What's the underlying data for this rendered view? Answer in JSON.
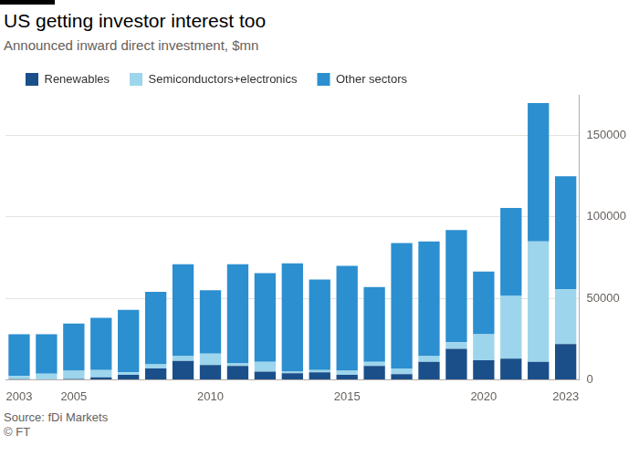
{
  "chart_data": {
    "type": "bar",
    "title": "US getting investor interest too",
    "subtitle": "Announced inward direct investment, $mn",
    "source": "Source: fDi Markets",
    "credit": "© FT",
    "stacked": true,
    "grid": true,
    "legend": "top-left",
    "categories": [
      "2003",
      null,
      "2005",
      null,
      null,
      null,
      null,
      "2010",
      null,
      null,
      null,
      null,
      "2015",
      null,
      null,
      null,
      null,
      "2020",
      null,
      null,
      "2023"
    ],
    "series": [
      {
        "name": "Renewables",
        "color": "#1b4f8a",
        "values": [
          300,
          200,
          500,
          1500,
          3000,
          7000,
          11500,
          9000,
          8500,
          5000,
          4000,
          4500,
          3000,
          8500,
          3500,
          11000,
          19000,
          12000,
          13000,
          11000,
          22000
        ]
      },
      {
        "name": "Semiconductors+electronics",
        "color": "#9dd5ec",
        "values": [
          2000,
          3500,
          5000,
          4500,
          1500,
          2500,
          3000,
          7000,
          1500,
          6000,
          1000,
          1500,
          2500,
          2500,
          3500,
          3500,
          4000,
          16000,
          38500,
          74000,
          33500
        ]
      },
      {
        "name": "Other sectors",
        "color": "#2b8fd0",
        "values": [
          25700,
          24300,
          29000,
          32000,
          38500,
          44500,
          56500,
          39000,
          61000,
          54500,
          66500,
          55500,
          64500,
          46000,
          77000,
          70500,
          69000,
          38500,
          54000,
          85000,
          69500
        ]
      }
    ],
    "ylim": [
      0,
      175000
    ],
    "yticks": [
      0,
      50000,
      100000,
      150000
    ]
  }
}
